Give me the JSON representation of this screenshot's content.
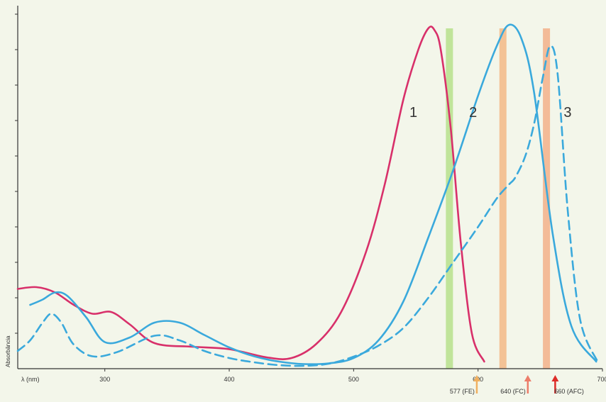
{
  "chart_data": {
    "type": "line",
    "xlabel": "λ (nm)",
    "ylabel": "Absorbância",
    "xlim": [
      230,
      700
    ],
    "ylim": [
      0,
      1
    ],
    "xticks": [
      300,
      400,
      500,
      600,
      700
    ],
    "xtick_labels": [
      "300",
      "400",
      "500",
      "600",
      "700"
    ],
    "yticks": [
      0.1,
      0.2,
      0.3,
      0.4,
      0.5,
      0.6,
      0.7,
      0.8,
      0.9,
      1.0
    ],
    "series": [
      {
        "name": "1",
        "color": "#d8306a",
        "style": "solid",
        "x": [
          230,
          245,
          260,
          275,
          290,
          305,
          320,
          340,
          370,
          400,
          430,
          450,
          470,
          490,
          510,
          525,
          540,
          552,
          560,
          565,
          570,
          578,
          586,
          595,
          605
        ],
        "y": [
          0.225,
          0.23,
          0.215,
          0.18,
          0.155,
          0.16,
          0.125,
          0.072,
          0.062,
          0.055,
          0.032,
          0.03,
          0.07,
          0.16,
          0.33,
          0.52,
          0.76,
          0.9,
          0.96,
          0.955,
          0.9,
          0.68,
          0.36,
          0.1,
          0.02
        ]
      },
      {
        "name": "2",
        "color": "#3aa9dc",
        "style": "solid",
        "x": [
          240,
          250,
          260,
          270,
          285,
          300,
          320,
          340,
          360,
          380,
          400,
          420,
          440,
          460,
          480,
          500,
          520,
          540,
          560,
          580,
          600,
          615,
          625,
          635,
          645,
          660,
          675,
          695
        ],
        "y": [
          0.18,
          0.195,
          0.215,
          0.205,
          0.145,
          0.075,
          0.088,
          0.13,
          0.13,
          0.095,
          0.06,
          0.035,
          0.02,
          0.013,
          0.015,
          0.03,
          0.08,
          0.19,
          0.37,
          0.56,
          0.77,
          0.91,
          0.97,
          0.93,
          0.78,
          0.38,
          0.12,
          0.02
        ]
      },
      {
        "name": "3",
        "color": "#3aa9dc",
        "style": "dashed",
        "x": [
          230,
          240,
          250,
          257,
          265,
          275,
          290,
          310,
          340,
          360,
          380,
          400,
          420,
          440,
          460,
          480,
          500,
          520,
          540,
          560,
          580,
          600,
          615,
          625,
          630,
          638,
          645,
          652,
          658,
          664,
          672,
          682,
          696
        ],
        "y": [
          0.05,
          0.08,
          0.13,
          0.155,
          0.13,
          0.068,
          0.035,
          0.047,
          0.093,
          0.08,
          0.05,
          0.03,
          0.018,
          0.01,
          0.008,
          0.014,
          0.034,
          0.065,
          0.115,
          0.2,
          0.3,
          0.4,
          0.48,
          0.52,
          0.54,
          0.6,
          0.69,
          0.82,
          0.91,
          0.83,
          0.45,
          0.14,
          0.02
        ]
      }
    ],
    "bands": [
      {
        "x": 577,
        "color": "#b6e08c"
      },
      {
        "x": 620,
        "color": "#f2b886"
      },
      {
        "x": 655,
        "color": "#f2b08a"
      }
    ],
    "curve_labels": [
      {
        "text": "1",
        "x": 548,
        "y": 0.71
      },
      {
        "text": "2",
        "x": 596,
        "y": 0.71
      },
      {
        "text": "3",
        "x": 672,
        "y": 0.71
      }
    ],
    "markers": [
      {
        "text": "577 (FE)",
        "x": 599,
        "color": "#f0b060"
      },
      {
        "text": "640 (FC)",
        "x": 640,
        "color": "#ec7d6a"
      },
      {
        "text": "660 (AFC)",
        "x": 662,
        "color": "#dd2c28"
      }
    ]
  }
}
